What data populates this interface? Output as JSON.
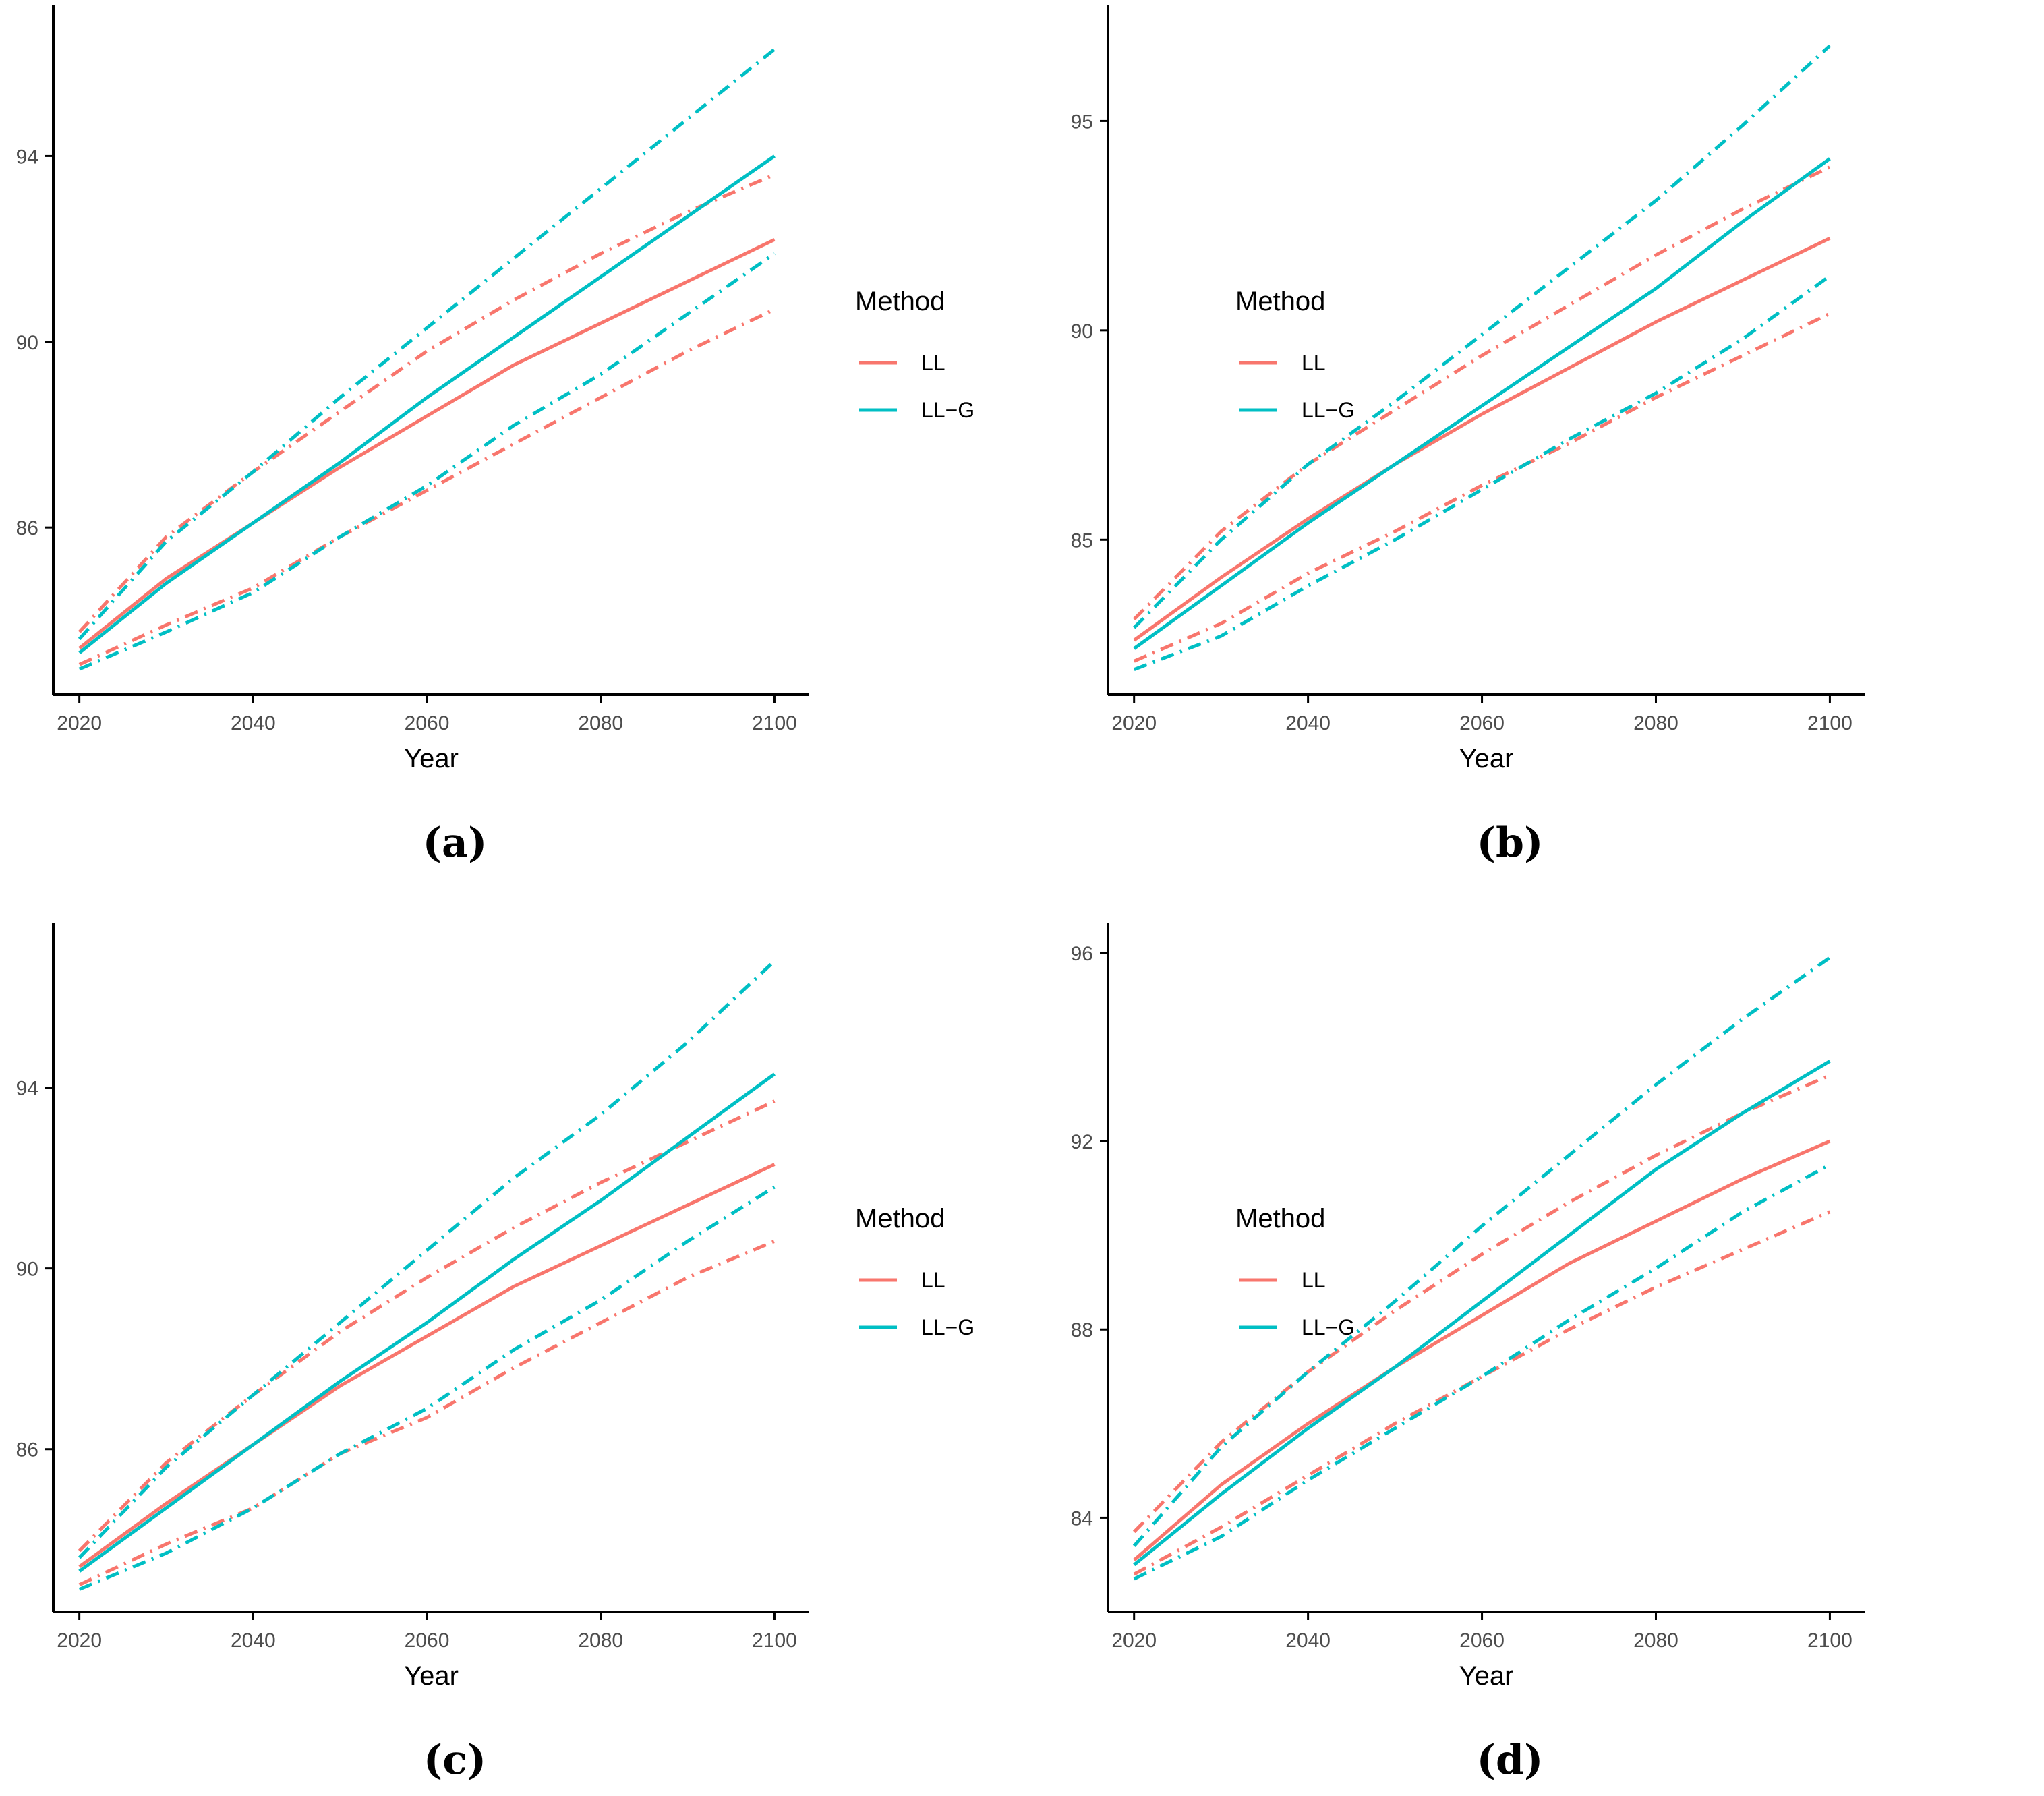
{
  "colors": {
    "LL": "#F8766D",
    "LL-G": "#00BFC4",
    "axis": "#000000",
    "tick_text": "#4d4d4d"
  },
  "legend": {
    "title": "Method",
    "entries": [
      "LL",
      "LL−G"
    ]
  },
  "chart_data": [
    {
      "type": "line",
      "label": "(a)",
      "xlabel": "Year",
      "ylabel": "",
      "x": [
        2020,
        2030,
        2040,
        2050,
        2060,
        2070,
        2080,
        2090,
        2100
      ],
      "xlim": [
        2017,
        2104
      ],
      "xticks": [
        2020,
        2040,
        2060,
        2080,
        2100
      ],
      "ylim": [
        82.4,
        97.1
      ],
      "yticks": [
        86,
        90,
        94
      ],
      "legend_position": "right",
      "series": [
        {
          "name": "LL",
          "style": "solid",
          "values": [
            83.4,
            84.9,
            86.1,
            87.3,
            88.4,
            89.5,
            90.4,
            91.3,
            92.2
          ]
        },
        {
          "name": "LL",
          "style": "dotdash",
          "values": [
            83.75,
            85.8,
            87.2,
            88.5,
            89.8,
            90.9,
            91.9,
            92.8,
            93.6
          ]
        },
        {
          "name": "LL",
          "style": "dotdash",
          "values": [
            83.05,
            83.9,
            84.7,
            85.8,
            86.8,
            87.8,
            88.8,
            89.8,
            90.7
          ]
        },
        {
          "name": "LL−G",
          "style": "solid",
          "values": [
            83.3,
            84.8,
            86.1,
            87.4,
            88.8,
            90.1,
            91.4,
            92.7,
            94.0
          ]
        },
        {
          "name": "LL−G",
          "style": "dotdash",
          "values": [
            83.6,
            85.7,
            87.2,
            88.8,
            90.3,
            91.8,
            93.3,
            94.8,
            96.3
          ]
        },
        {
          "name": "LL−G",
          "style": "dotdash",
          "values": [
            82.95,
            83.75,
            84.6,
            85.8,
            86.9,
            88.2,
            89.3,
            90.6,
            91.9
          ]
        }
      ]
    },
    {
      "type": "line",
      "label": "(b)",
      "xlabel": "Year",
      "ylabel": "",
      "x": [
        2020,
        2030,
        2040,
        2050,
        2060,
        2070,
        2080,
        2090,
        2100
      ],
      "xlim": [
        2017,
        2104
      ],
      "xticks": [
        2020,
        2040,
        2060,
        2080,
        2100
      ],
      "ylim": [
        81.3,
        97.6
      ],
      "yticks": [
        85,
        90,
        95
      ],
      "legend_position": "right",
      "series": [
        {
          "name": "LL",
          "style": "solid",
          "values": [
            82.6,
            84.1,
            85.5,
            86.8,
            88.0,
            89.1,
            90.2,
            91.2,
            92.2
          ]
        },
        {
          "name": "LL",
          "style": "dotdash",
          "values": [
            83.1,
            85.2,
            86.8,
            88.1,
            89.4,
            90.6,
            91.8,
            92.9,
            93.9
          ]
        },
        {
          "name": "LL",
          "style": "dotdash",
          "values": [
            82.1,
            83.0,
            84.2,
            85.2,
            86.3,
            87.3,
            88.4,
            89.4,
            90.4
          ]
        },
        {
          "name": "LL−G",
          "style": "solid",
          "values": [
            82.4,
            83.9,
            85.4,
            86.8,
            88.2,
            89.6,
            91.0,
            92.6,
            94.1
          ]
        },
        {
          "name": "LL−G",
          "style": "dotdash",
          "values": [
            82.9,
            85.0,
            86.8,
            88.3,
            89.9,
            91.5,
            93.1,
            94.9,
            96.8
          ]
        },
        {
          "name": "LL−G",
          "style": "dotdash",
          "values": [
            81.9,
            82.7,
            83.9,
            85.0,
            86.2,
            87.4,
            88.5,
            89.8,
            91.3
          ]
        }
      ]
    },
    {
      "type": "line",
      "label": "(c)",
      "xlabel": "Year",
      "ylabel": "",
      "x": [
        2020,
        2030,
        2040,
        2050,
        2060,
        2070,
        2080,
        2090,
        2100
      ],
      "xlim": [
        2017,
        2104
      ],
      "xticks": [
        2020,
        2040,
        2060,
        2080,
        2100
      ],
      "ylim": [
        82.4,
        97.5
      ],
      "yticks": [
        86,
        90,
        94
      ],
      "legend_position": "right",
      "series": [
        {
          "name": "LL",
          "style": "solid",
          "values": [
            83.4,
            84.8,
            86.1,
            87.4,
            88.5,
            89.6,
            90.5,
            91.4,
            92.3
          ]
        },
        {
          "name": "LL",
          "style": "dotdash",
          "values": [
            83.75,
            85.7,
            87.2,
            88.6,
            89.8,
            90.9,
            91.9,
            92.8,
            93.7
          ]
        },
        {
          "name": "LL",
          "style": "dotdash",
          "values": [
            83.0,
            83.9,
            84.7,
            85.9,
            86.7,
            87.8,
            88.8,
            89.8,
            90.6
          ]
        },
        {
          "name": "LL−G",
          "style": "solid",
          "values": [
            83.3,
            84.7,
            86.1,
            87.5,
            88.8,
            90.2,
            91.5,
            92.9,
            94.3
          ]
        },
        {
          "name": "LL−G",
          "style": "dotdash",
          "values": [
            83.6,
            85.6,
            87.2,
            88.8,
            90.4,
            92.0,
            93.4,
            95.0,
            96.8
          ]
        },
        {
          "name": "LL−G",
          "style": "dotdash",
          "values": [
            82.9,
            83.7,
            84.7,
            85.9,
            86.9,
            88.2,
            89.3,
            90.6,
            91.8
          ]
        }
      ]
    },
    {
      "type": "line",
      "label": "(d)",
      "xlabel": "Year",
      "ylabel": "",
      "x": [
        2020,
        2030,
        2040,
        2050,
        2060,
        2070,
        2080,
        2090,
        2100
      ],
      "xlim": [
        2017,
        2104
      ],
      "xticks": [
        2020,
        2040,
        2060,
        2080,
        2100
      ],
      "ylim": [
        82.0,
        96.5
      ],
      "yticks": [
        84,
        88,
        92,
        96
      ],
      "legend_position": "right",
      "series": [
        {
          "name": "LL",
          "style": "solid",
          "values": [
            83.1,
            84.7,
            86.0,
            87.2,
            88.3,
            89.4,
            90.3,
            91.2,
            92.0
          ]
        },
        {
          "name": "LL",
          "style": "dotdash",
          "values": [
            83.7,
            85.6,
            87.1,
            88.4,
            89.6,
            90.7,
            91.7,
            92.6,
            93.4
          ]
        },
        {
          "name": "LL",
          "style": "dotdash",
          "values": [
            82.8,
            83.8,
            84.9,
            86.0,
            87.0,
            88.0,
            88.9,
            89.7,
            90.5
          ]
        },
        {
          "name": "LL−G",
          "style": "solid",
          "values": [
            83.0,
            84.5,
            85.9,
            87.2,
            88.6,
            90.0,
            91.4,
            92.6,
            93.7
          ]
        },
        {
          "name": "LL−G",
          "style": "dotdash",
          "values": [
            83.4,
            85.5,
            87.1,
            88.6,
            90.2,
            91.7,
            93.2,
            94.6,
            95.9
          ]
        },
        {
          "name": "LL−G",
          "style": "dotdash",
          "values": [
            82.7,
            83.6,
            84.8,
            85.9,
            87.0,
            88.2,
            89.3,
            90.5,
            91.5
          ]
        }
      ]
    }
  ]
}
